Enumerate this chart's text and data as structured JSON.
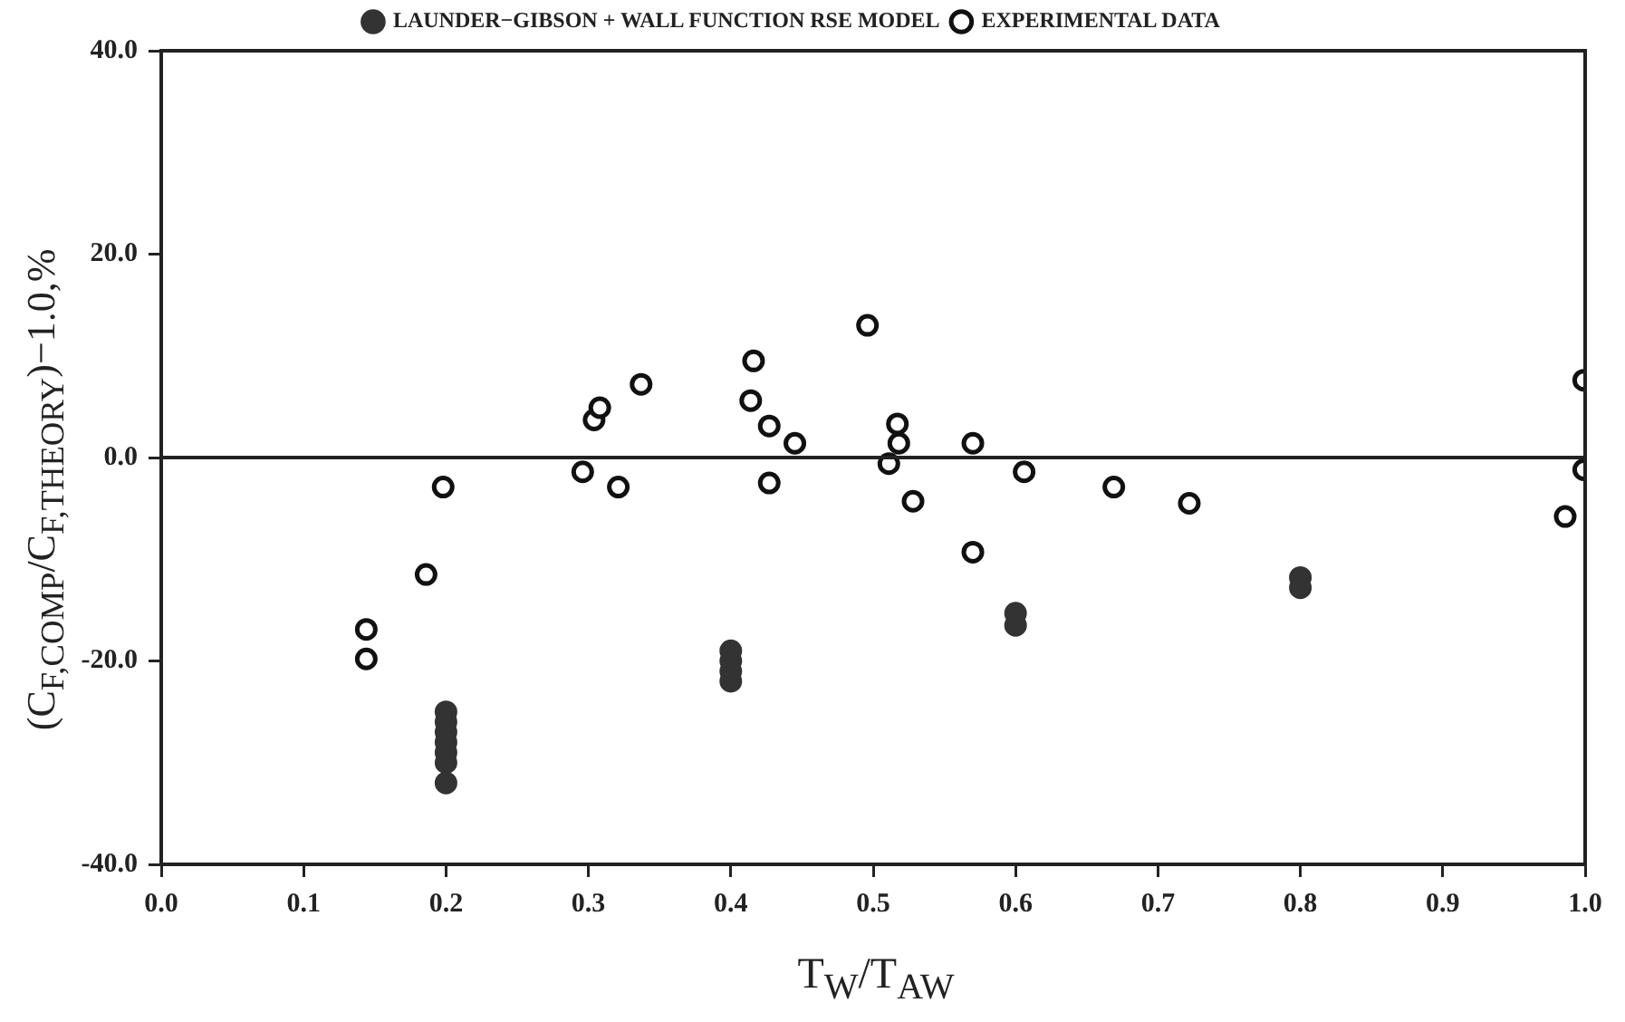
{
  "chart_data": {
    "type": "scatter",
    "xlabel": "T$_{W}$/T$_{AW}$",
    "ylabel": "(C$_{F,COMP}$/C$_{F,THEORY}$)−1.0,%",
    "xlim": [
      0,
      1
    ],
    "xticks": [
      {
        "value": 0,
        "label": "0.0"
      },
      {
        "value": 0.1,
        "label": "0.1"
      },
      {
        "value": 0.2,
        "label": "0.2"
      },
      {
        "value": 0.3,
        "label": "0.3"
      },
      {
        "value": 0.4,
        "label": "0.4"
      },
      {
        "value": 0.5,
        "label": "0.5"
      },
      {
        "value": 0.6,
        "label": "0.6"
      },
      {
        "value": 0.7,
        "label": "0.7"
      },
      {
        "value": 0.8,
        "label": "0.8"
      },
      {
        "value": 0.9,
        "label": "0.9"
      },
      {
        "value": 1,
        "label": "1.0"
      }
    ],
    "ylim": [
      -40,
      40
    ],
    "yticks": [
      {
        "value": -40,
        "label": "-40.0"
      },
      {
        "value": -20,
        "label": "-20.0"
      },
      {
        "value": 0,
        "label": "0.0"
      },
      {
        "value": 20,
        "label": "20.0"
      },
      {
        "value": 40,
        "label": "40.0"
      }
    ],
    "grid": false,
    "legend": "top",
    "marker": "circle",
    "ref_lines": [
      {
        "axis": "y",
        "value": 0,
        "color": "#222222"
      }
    ],
    "series": [
      {
        "name": "LAUNDER−GIBSON + WALL FUNCTION RSE MODEL",
        "color": "#333333",
        "x": [
          0.2,
          0.2,
          0.2,
          0.2,
          0.2,
          0.2,
          0.2,
          0.4,
          0.4,
          0.4,
          0.4,
          0.6,
          0.6,
          0.8,
          0.8
        ],
        "values": [
          -25,
          -26,
          -27,
          -28,
          -29,
          -30,
          -32,
          -19,
          -20,
          -21,
          -22,
          -15.3,
          -16.5,
          -11.8,
          -12.8
        ]
      },
      {
        "name": "EXPERIMENTAL DATA",
        "color": "#111111",
        "x": [
          0.144,
          0.144,
          0.186,
          0.198,
          0.296,
          0.304,
          0.308,
          0.321,
          0.337,
          0.416,
          0.414,
          0.427,
          0.427,
          0.445,
          0.496,
          0.517,
          0.518,
          0.511,
          0.528,
          0.57,
          0.57,
          0.606,
          0.669,
          0.722,
          0.999,
          0.999,
          0.986
        ],
        "values": [
          -16.9,
          -19.8,
          -11.5,
          -2.9,
          -1.4,
          3.7,
          4.9,
          -2.9,
          7.2,
          9.5,
          5.6,
          3.1,
          -2.5,
          1.4,
          13,
          3.3,
          1.4,
          -0.6,
          -4.3,
          1.4,
          -9.3,
          -1.4,
          -2.9,
          -4.5,
          7.6,
          -1.2,
          -5.8
        ]
      }
    ]
  }
}
